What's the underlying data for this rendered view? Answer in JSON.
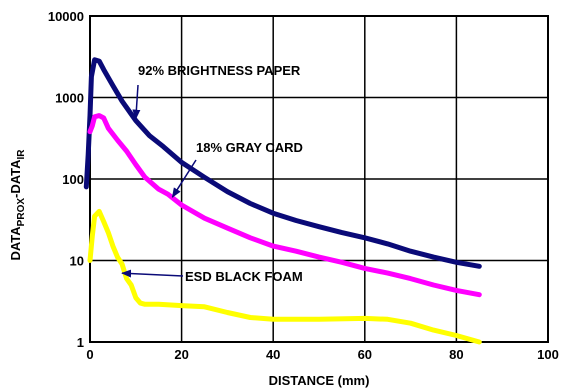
{
  "chart_data": {
    "type": "line",
    "title": "",
    "xlabel": "DISTANCE (mm)",
    "ylabel_parts": [
      "DATA",
      "PROX",
      "-DATA",
      "IR"
    ],
    "xlim": [
      0,
      100
    ],
    "ylim": [
      1,
      10000
    ],
    "y_scale": "log",
    "grid": true,
    "x_ticks": [
      0,
      20,
      40,
      60,
      80,
      100
    ],
    "y_ticks": [
      1,
      10,
      100,
      1000,
      10000
    ],
    "x_tick_labels": [
      "0",
      "20",
      "40",
      "60",
      "80",
      "100"
    ],
    "y_tick_labels": [
      "1",
      "10",
      "100",
      "1000",
      "10000"
    ],
    "series": [
      {
        "name": "92% BRIGHTNESS PAPER",
        "color": "#0a0a78",
        "points": [
          [
            -0.8,
            80
          ],
          [
            -0.4,
            200
          ],
          [
            0,
            600
          ],
          [
            0.3,
            1800
          ],
          [
            1,
            2900
          ],
          [
            2,
            2800
          ],
          [
            3,
            2200
          ],
          [
            5,
            1400
          ],
          [
            7,
            900
          ],
          [
            10,
            520
          ],
          [
            13,
            340
          ],
          [
            16,
            250
          ],
          [
            20,
            160
          ],
          [
            25,
            105
          ],
          [
            30,
            70
          ],
          [
            35,
            50
          ],
          [
            40,
            38
          ],
          [
            45,
            31
          ],
          [
            50,
            26
          ],
          [
            55,
            22
          ],
          [
            60,
            19
          ],
          [
            65,
            16
          ],
          [
            70,
            13
          ],
          [
            75,
            11
          ],
          [
            80,
            9.5
          ],
          [
            85,
            8.5
          ]
        ]
      },
      {
        "name": "18% GRAY CARD",
        "color": "#ff00ff",
        "points": [
          [
            0,
            380
          ],
          [
            0.5,
            450
          ],
          [
            1,
            580
          ],
          [
            2,
            600
          ],
          [
            3,
            560
          ],
          [
            4,
            420
          ],
          [
            6,
            300
          ],
          [
            8,
            220
          ],
          [
            10,
            150
          ],
          [
            12,
            105
          ],
          [
            15,
            75
          ],
          [
            17,
            65
          ],
          [
            20,
            48
          ],
          [
            25,
            33
          ],
          [
            30,
            25
          ],
          [
            35,
            19
          ],
          [
            40,
            15
          ],
          [
            45,
            13
          ],
          [
            50,
            11
          ],
          [
            55,
            9.5
          ],
          [
            60,
            8
          ],
          [
            65,
            7
          ],
          [
            70,
            6
          ],
          [
            75,
            5
          ],
          [
            80,
            4.3
          ],
          [
            85,
            3.8
          ]
        ]
      },
      {
        "name": "ESD BLACK FOAM",
        "color": "#ffff00",
        "points": [
          [
            0,
            10
          ],
          [
            0.5,
            20
          ],
          [
            1,
            35
          ],
          [
            2,
            40
          ],
          [
            3,
            30
          ],
          [
            4,
            22
          ],
          [
            5,
            15
          ],
          [
            6,
            11
          ],
          [
            7,
            9
          ],
          [
            8,
            6
          ],
          [
            9,
            5
          ],
          [
            10,
            3.5
          ],
          [
            11,
            3
          ],
          [
            12,
            2.9
          ],
          [
            15,
            2.9
          ],
          [
            20,
            2.8
          ],
          [
            25,
            2.7
          ],
          [
            30,
            2.3
          ],
          [
            35,
            2
          ],
          [
            40,
            1.9
          ],
          [
            50,
            1.9
          ],
          [
            60,
            1.95
          ],
          [
            65,
            1.9
          ],
          [
            70,
            1.7
          ],
          [
            75,
            1.4
          ],
          [
            80,
            1.2
          ],
          [
            85,
            1
          ]
        ]
      }
    ],
    "annotations": [
      {
        "text": "92% BRIGHTNESS PAPER",
        "points_to": [
          10,
          550
        ]
      },
      {
        "text": "18% GRAY CARD",
        "points_to": [
          18,
          60
        ]
      },
      {
        "text": "ESD BLACK FOAM",
        "points_to": [
          7,
          7
        ]
      }
    ]
  }
}
